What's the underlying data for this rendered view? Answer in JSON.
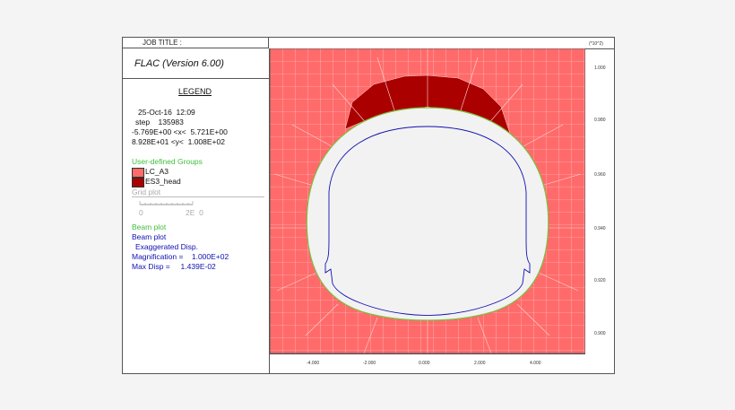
{
  "header": {
    "job_title": "JOB TITLE :",
    "scale": "(*10^2)"
  },
  "app": {
    "title": "FLAC (Version 6.00)"
  },
  "legend": {
    "title": "LEGEND",
    "date": "25-Oct-16  12:09",
    "step": "step    135983",
    "xrange": "-5.769E+00 <x<  5.721E+00",
    "yrange": "8.928E+01 <y<  1.008E+02",
    "groups_title": "User-defined Groups",
    "groups": [
      {
        "label": "LC_A3",
        "color": "#ff6b6b"
      },
      {
        "label": "ES3_head",
        "color": "#aa0000"
      }
    ],
    "grid_plot": "Grid plot",
    "grid_scale_left": "0",
    "grid_scale_right": "2E  0",
    "beam_plot_1": "Beam plot",
    "beam_plot_2": "Beam plot",
    "exaggerated": "Exaggerated Disp.",
    "magnification": "Magnification =    1.000E+02",
    "max_disp": "Max Disp =     1.439E-02"
  },
  "axes": {
    "x_ticks": [
      "-4.000",
      "-2.000",
      "0.000",
      "2.000",
      "4.000"
    ],
    "y_ticks": [
      "1.000",
      "0.980",
      "0.960",
      "0.940",
      "0.920",
      "0.900"
    ]
  },
  "colors": {
    "rock": "#ff6b6b",
    "head": "#aa0000",
    "mesh": "#ffd6d6",
    "lining": "#7fbf3f",
    "beam": "#1010b0",
    "opening": "#f2f2f2"
  }
}
